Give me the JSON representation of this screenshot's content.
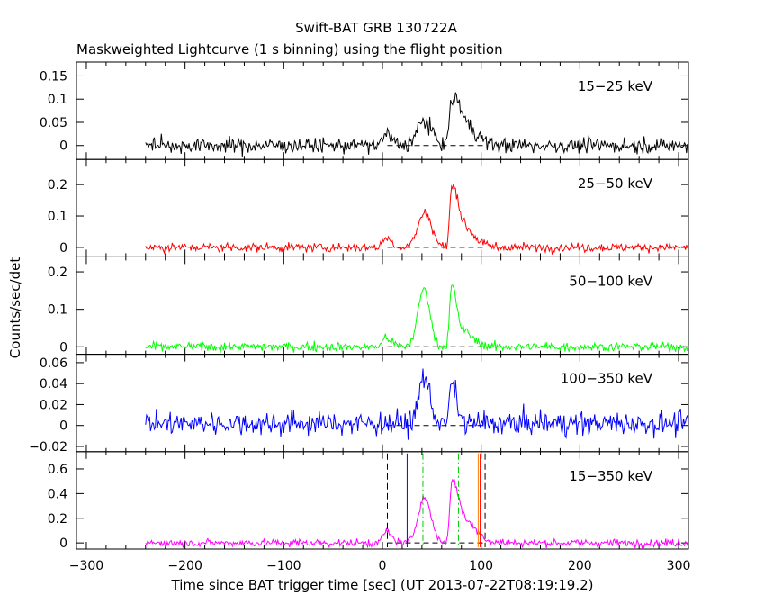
{
  "title": "Swift-BAT GRB 130722A",
  "subtitle": "Maskweighted Lightcurve (1 s binning) using the flight position",
  "xlabel": "Time since BAT trigger time [sec] (UT 2013-07-22T08:19:19.2)",
  "ylabel": "Counts/sec/det",
  "chart_data": {
    "type": "line",
    "title": "Swift-BAT GRB 130722A",
    "subtitle": "Maskweighted Lightcurve (1 s binning) using the flight position",
    "xlabel": "Time since BAT trigger time [sec] (UT 2013-07-22T08:19:19.2)",
    "ylabel": "Counts/sec/det",
    "xlim": [
      -310,
      310
    ],
    "x_ticks": [
      -300,
      -200,
      -100,
      0,
      100,
      200,
      300
    ],
    "x_tick_labels": [
      "−300",
      "−200",
      "−100",
      "0",
      "100",
      "200",
      "300"
    ],
    "data_start": -240,
    "data_end": 310,
    "binning_sec": 1,
    "panels": [
      {
        "name": "15−25 keV",
        "color": "#000000",
        "ylim": [
          -0.03,
          0.18
        ],
        "y_ticks": [
          0,
          0.05,
          0.1,
          0.15
        ],
        "y_tick_labels": [
          "0",
          "0.05",
          "0.1",
          "0.15"
        ],
        "noise": 0.008,
        "background": 0,
        "pulses": [
          {
            "t": 3,
            "amp": 0.025,
            "rise": 3,
            "decay": 6
          },
          {
            "t": 42,
            "amp": 0.052,
            "rise": 7,
            "decay": 8
          },
          {
            "t": 70,
            "amp": 0.085,
            "rise": 2.5,
            "decay": 6
          },
          {
            "t": 78,
            "amp": 0.055,
            "rise": 4,
            "decay": 14
          }
        ]
      },
      {
        "name": "25−50 keV",
        "color": "#ff0000",
        "ylim": [
          -0.03,
          0.28
        ],
        "y_ticks": [
          0,
          0.1,
          0.2
        ],
        "y_tick_labels": [
          "0",
          "0.1",
          "0.2"
        ],
        "noise": 0.007,
        "background": 0,
        "pulses": [
          {
            "t": 3,
            "amp": 0.03,
            "rise": 3,
            "decay": 6
          },
          {
            "t": 43,
            "amp": 0.11,
            "rise": 7,
            "decay": 7
          },
          {
            "t": 70,
            "amp": 0.17,
            "rise": 2,
            "decay": 5
          },
          {
            "t": 77,
            "amp": 0.08,
            "rise": 4,
            "decay": 13
          }
        ]
      },
      {
        "name": "50−100 keV",
        "color": "#00ff00",
        "ylim": [
          -0.02,
          0.24
        ],
        "y_ticks": [
          0,
          0.1,
          0.2
        ],
        "y_tick_labels": [
          "0",
          "0.1",
          "0.2"
        ],
        "noise": 0.006,
        "background": 0,
        "pulses": [
          {
            "t": 3,
            "amp": 0.025,
            "rise": 3,
            "decay": 6
          },
          {
            "t": 42,
            "amp": 0.155,
            "rise": 6,
            "decay": 6
          },
          {
            "t": 70,
            "amp": 0.15,
            "rise": 2,
            "decay": 4
          },
          {
            "t": 77,
            "amp": 0.05,
            "rise": 4,
            "decay": 12
          }
        ]
      },
      {
        "name": "100−350 keV",
        "color": "#0000ff",
        "ylim": [
          -0.025,
          0.068
        ],
        "y_ticks": [
          -0.02,
          0,
          0.02,
          0.04,
          0.06
        ],
        "y_tick_labels": [
          "−0.02",
          "0",
          "0.02",
          "0.04",
          "0.06"
        ],
        "noise": 0.0055,
        "background": 0.002,
        "pulses": [
          {
            "t": 42,
            "amp": 0.045,
            "rise": 5,
            "decay": 6
          },
          {
            "t": 70,
            "amp": 0.038,
            "rise": 2,
            "decay": 5
          }
        ]
      },
      {
        "name": "15−350 keV",
        "color": "#ff00ff",
        "ylim": [
          -0.05,
          0.74
        ],
        "y_ticks": [
          0,
          0.2,
          0.4,
          0.6
        ],
        "y_tick_labels": [
          "0",
          "0.2",
          "0.4",
          "0.6"
        ],
        "noise": 0.015,
        "background": 0,
        "pulses": [
          {
            "t": 3,
            "amp": 0.09,
            "rise": 3,
            "decay": 6
          },
          {
            "t": 42,
            "amp": 0.37,
            "rise": 6,
            "decay": 7
          },
          {
            "t": 70,
            "amp": 0.46,
            "rise": 2,
            "decay": 5
          },
          {
            "t": 78,
            "amp": 0.22,
            "rise": 4,
            "decay": 14
          }
        ]
      }
    ],
    "vertical_markers": [
      {
        "x": 5,
        "color": "#000000",
        "style": "dash"
      },
      {
        "x": 104,
        "color": "#000000",
        "style": "dash"
      },
      {
        "x": 25,
        "color": "#0000ff",
        "style": "solid"
      },
      {
        "x": 41,
        "color": "#00cc00",
        "style": "dashdot"
      },
      {
        "x": 77,
        "color": "#00cc00",
        "style": "dashdot"
      },
      {
        "x": 97,
        "color": "#ff8000",
        "style": "solid"
      },
      {
        "x": 99,
        "color": "#ff0000",
        "style": "solid"
      }
    ],
    "zero_line_range": [
      5,
      104
    ]
  }
}
